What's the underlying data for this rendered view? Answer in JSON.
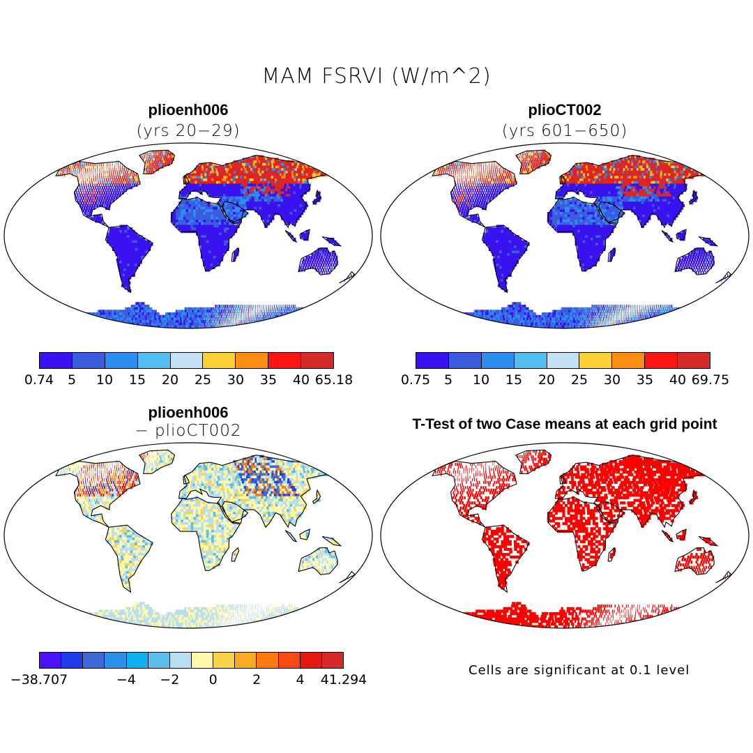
{
  "title": "MAM FSRVI (W/m^2)",
  "panels": {
    "tl": {
      "title": "plioenh006",
      "subtitle": "(yrs 20−29)"
    },
    "tr": {
      "title": "plioCT002",
      "subtitle": "(yrs 601−650)"
    },
    "bl": {
      "title": "plioenh006",
      "subtitle": "− plioCT002"
    },
    "br": {
      "title": "T-Test of two Case means at each grid point",
      "note": "Cells are significant at 0.1 level"
    }
  },
  "colorbars": {
    "tl": {
      "colors": [
        "#3a12f0",
        "#3c5ce0",
        "#2b8ef0",
        "#55bef0",
        "#c5e2f5",
        "#fbd035",
        "#fc8f12",
        "#fb1410",
        "#d42a2a"
      ],
      "labels": [
        "0.74",
        "5",
        "10",
        "15",
        "20",
        "25",
        "30",
        "35",
        "40",
        "65.18"
      ]
    },
    "tr": {
      "colors": [
        "#3a12f0",
        "#3c5ce0",
        "#2b8ef0",
        "#55bef0",
        "#c5e2f5",
        "#fbd035",
        "#fc8f12",
        "#fb1410",
        "#d42a2a"
      ],
      "labels": [
        "0.75",
        "5",
        "10",
        "15",
        "20",
        "25",
        "30",
        "35",
        "40",
        "69.75"
      ]
    },
    "bl": {
      "colors": [
        "#4b12f5",
        "#1f3ce8",
        "#3d6ad6",
        "#2c8fe8",
        "#10b0f2",
        "#5bbdeb",
        "#b8def2",
        "#fff8a8",
        "#fcd24a",
        "#fcaa22",
        "#fc7a10",
        "#f94a0f",
        "#e41a10",
        "#d42a2a"
      ],
      "labels": [
        "−38.707",
        "−4",
        "−2",
        "0",
        "2",
        "4",
        "41.294"
      ]
    }
  },
  "map_colors": {
    "ocean": "#ffffff",
    "coast": "#000000",
    "low": "#3a12f0",
    "mid": "#3c5ce0",
    "high_red": "#d42a2a",
    "diff_base": "#fff5a5",
    "diff_neg": "#b8def2",
    "significant": "#ff0000"
  }
}
